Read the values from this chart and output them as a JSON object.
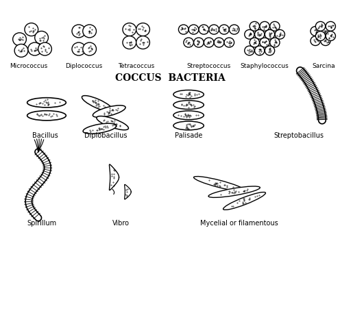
{
  "title": "COCCUS  BACTERIA",
  "background_color": "#ffffff",
  "text_color": "#000000",
  "labels": {
    "micrococcus": "Micrococcus",
    "diplococcus": "Diplococcus",
    "tetracoccus": "Tetracoccus",
    "streptococcus": "Streptococcus",
    "staphylococcus": "Staphylococcus",
    "sarcina": "Sarcina",
    "bacillus": "Bacillus",
    "diplobacillus": "Diplobacillus",
    "palisade": "Palisade",
    "streptobacillus": "Streptobacillus",
    "spirillum": "Spirillum",
    "vibro": "Vibro",
    "mycelial": "Mycelial or filamentous"
  },
  "figsize": [
    4.96,
    4.77
  ],
  "dpi": 100
}
